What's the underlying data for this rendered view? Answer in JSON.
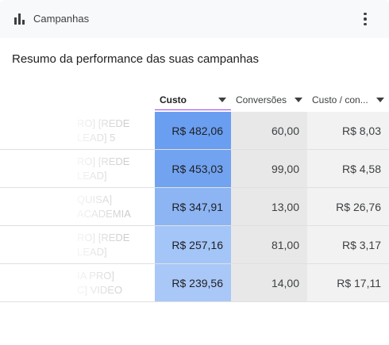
{
  "header": {
    "title": "Campanhas"
  },
  "subtitle": "Resumo da performance das suas campanhas",
  "columns": [
    {
      "label": "Custo",
      "sorted": true
    },
    {
      "label": "Conversões",
      "sorted": false
    },
    {
      "label": "Custo / con...",
      "sorted": false
    }
  ],
  "rows": [
    {
      "name": [
        "RO] [REDE",
        "LEAD] 5"
      ],
      "cost": "R$ 482,06",
      "conversions": "60,00",
      "cost_per_conv": "R$ 8,03",
      "cost_value": 482.06
    },
    {
      "name": [
        "RO] [REDE",
        "LEAD]"
      ],
      "cost": "R$ 453,03",
      "conversions": "99,00",
      "cost_per_conv": "R$ 4,58",
      "cost_value": 453.03
    },
    {
      "name": [
        "QUISA]",
        "ACADEMIA"
      ],
      "cost": "R$ 347,91",
      "conversions": "13,00",
      "cost_per_conv": "R$ 26,76",
      "cost_value": 347.91
    },
    {
      "name": [
        "RO] [REDE",
        "LEAD]"
      ],
      "cost": "R$ 257,16",
      "conversions": "81,00",
      "cost_per_conv": "R$ 3,17",
      "cost_value": 257.16
    },
    {
      "name": [
        "IA PRO]",
        "C] VIDEO"
      ],
      "cost": "R$ 239,56",
      "conversions": "14,00",
      "cost_per_conv": "R$ 17,11",
      "cost_value": 239.56
    }
  ],
  "colors": {
    "heat_high": "#6a9ef0",
    "heat_low": "#a9c8f8",
    "accent": "#a142f4"
  }
}
